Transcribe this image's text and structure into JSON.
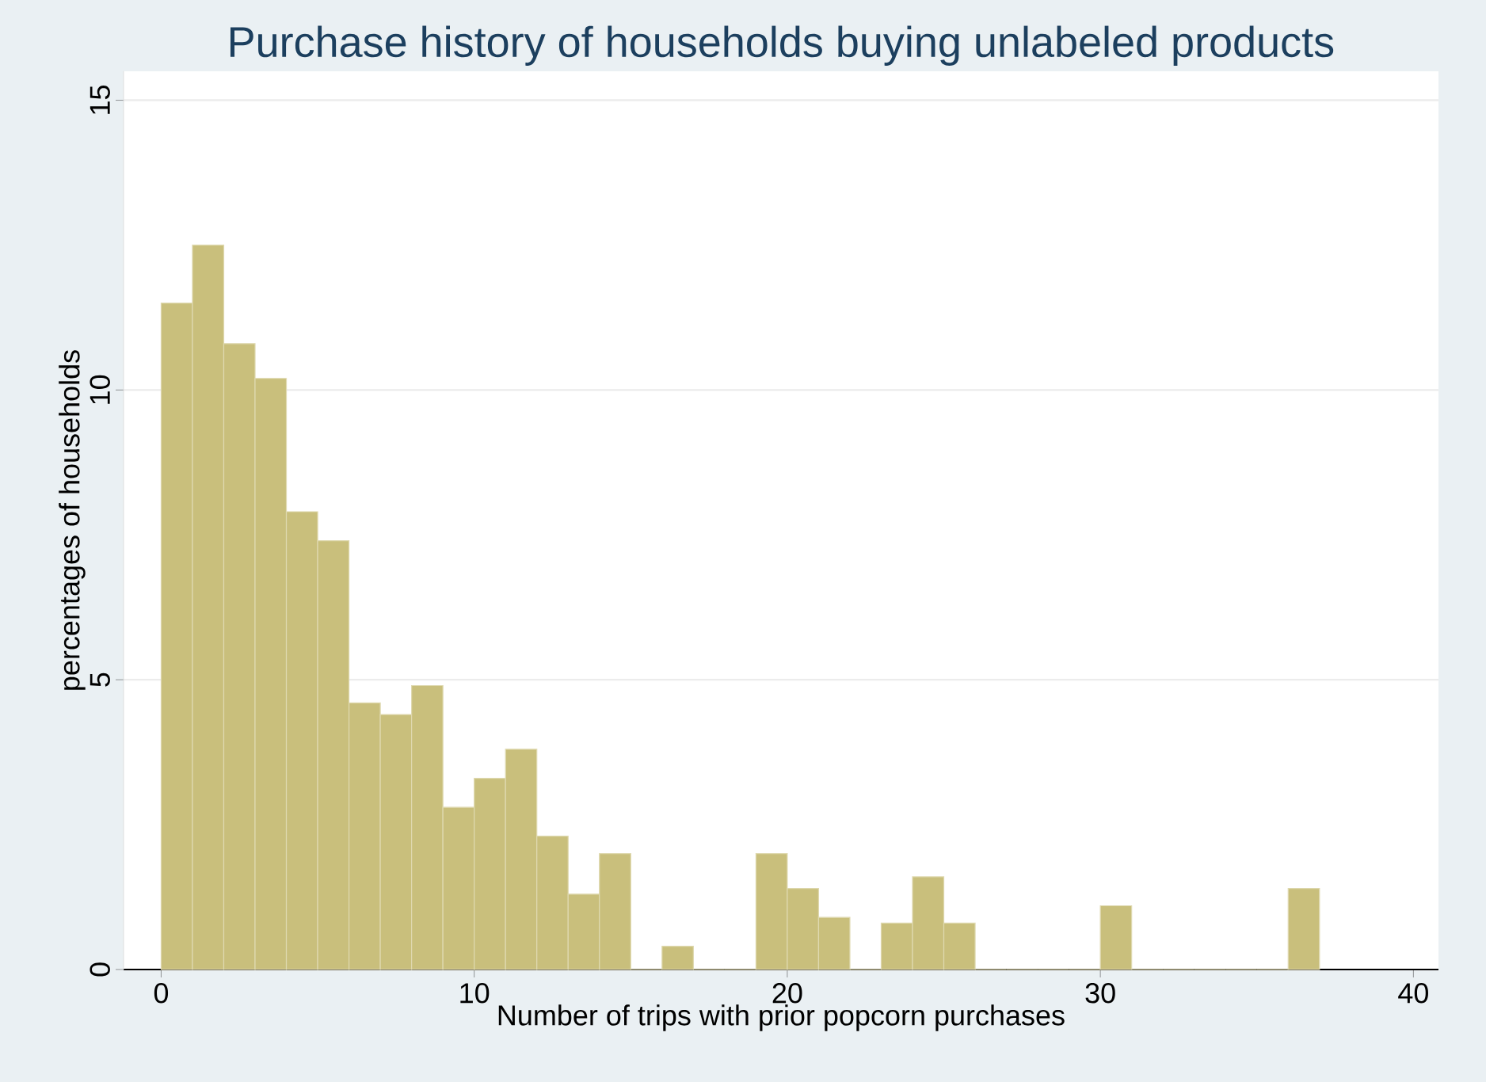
{
  "chart_data": {
    "type": "histogram",
    "title": "Purchase history of households buying unlabeled products",
    "xlabel": "Number of trips with prior popcorn purchases",
    "ylabel": "percentages of households",
    "bins": [
      0,
      1,
      2,
      3,
      4,
      5,
      6,
      7,
      8,
      9,
      10,
      11,
      12,
      13,
      14,
      15,
      16,
      17,
      18,
      19,
      20,
      21,
      22,
      23,
      24,
      25,
      26,
      27,
      28,
      29,
      30,
      31,
      32,
      33,
      34,
      35,
      36,
      37
    ],
    "values": [
      11.5,
      12.5,
      10.8,
      10.2,
      7.9,
      7.4,
      4.6,
      4.4,
      4.9,
      2.8,
      3.3,
      3.8,
      2.3,
      1.3,
      2.0,
      0,
      0.4,
      0,
      0,
      2.0,
      1.4,
      0.9,
      0,
      0.8,
      1.6,
      0.8,
      0,
      0,
      0,
      0,
      1.1,
      0,
      0,
      0,
      0,
      0,
      1.4
    ],
    "color": "#c9bf7c",
    "xlim": [
      -1.2,
      40.8
    ],
    "ylim": [
      0,
      15.5
    ],
    "xticks": [
      0,
      10,
      20,
      30,
      40
    ],
    "yticks": [
      0,
      5,
      10,
      15
    ],
    "grid": "y"
  }
}
